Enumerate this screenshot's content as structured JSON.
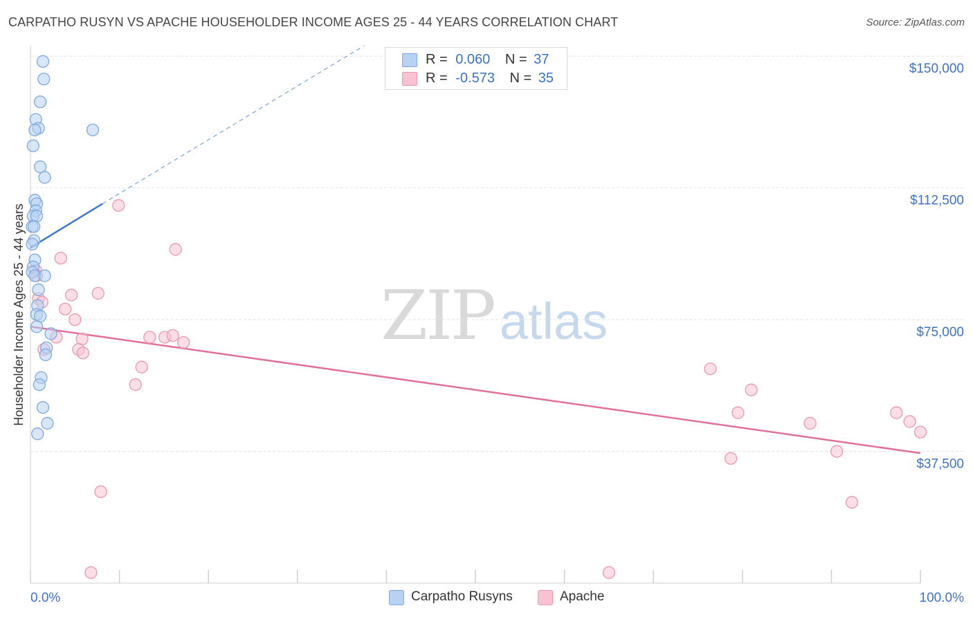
{
  "header": {
    "title": "CARPATHO RUSYN VS APACHE HOUSEHOLDER INCOME AGES 25 - 44 YEARS CORRELATION CHART",
    "source": "Source: ZipAtlas.com"
  },
  "watermark": {
    "zip": "ZIP",
    "atlas": "atlas"
  },
  "legend": {
    "rows": [
      {
        "r_label": "R =",
        "r_value": "0.060",
        "n_label": "N =",
        "n_value": "37"
      },
      {
        "r_label": "R =",
        "r_value": "-0.573",
        "n_label": "N =",
        "n_value": "35"
      }
    ]
  },
  "bottom_legend": {
    "series1": "Carpatho Rusyns",
    "series2": "Apache"
  },
  "colors": {
    "blue_fill": "#b7d2f3",
    "blue_stroke": "#7fa8e0",
    "blue_line": "#3a78c8",
    "pink_fill": "#f8c2d2",
    "pink_stroke": "#ec97b1",
    "pink_line": "#e2709a",
    "axis_label": "#3d72c4",
    "grid": "#e3e3e3"
  },
  "chart_data": {
    "type": "scatter",
    "title": "CARPATHO RUSYN VS APACHE HOUSEHOLDER INCOME AGES 25 - 44 YEARS CORRELATION CHART",
    "xlabel": "",
    "ylabel": "Householder Income Ages 25 - 44 years",
    "xlim": [
      0,
      100
    ],
    "ylim": [
      0,
      153000
    ],
    "x_tick_labels": [
      "0.0%",
      "100.0%"
    ],
    "y_ticks": [
      37500,
      75000,
      112500,
      150000
    ],
    "y_tick_labels": [
      "$37,500",
      "$75,000",
      "$112,500",
      "$150,000"
    ],
    "grid": true,
    "series": [
      {
        "name": "Carpatho Rusyns",
        "R": 0.06,
        "N": 37,
        "points": [
          [
            1.4,
            148500
          ],
          [
            1.5,
            143500
          ],
          [
            1.1,
            137000
          ],
          [
            0.6,
            132000
          ],
          [
            0.9,
            129500
          ],
          [
            0.5,
            129000
          ],
          [
            7.0,
            129000
          ],
          [
            0.3,
            124500
          ],
          [
            1.1,
            118500
          ],
          [
            1.6,
            115500
          ],
          [
            0.5,
            109000
          ],
          [
            0.7,
            108000
          ],
          [
            0.6,
            106000
          ],
          [
            0.3,
            104500
          ],
          [
            0.7,
            104500
          ],
          [
            0.2,
            101500
          ],
          [
            0.4,
            101500
          ],
          [
            0.4,
            97500
          ],
          [
            0.2,
            96500
          ],
          [
            0.5,
            92000
          ],
          [
            0.3,
            90000
          ],
          [
            0.2,
            88500
          ],
          [
            0.5,
            87500
          ],
          [
            1.6,
            87500
          ],
          [
            0.9,
            83500
          ],
          [
            0.8,
            79000
          ],
          [
            0.7,
            76500
          ],
          [
            1.1,
            76000
          ],
          [
            0.7,
            73000
          ],
          [
            2.3,
            71000
          ],
          [
            1.8,
            67000
          ],
          [
            1.7,
            65000
          ],
          [
            1.2,
            58500
          ],
          [
            1.0,
            56500
          ],
          [
            1.4,
            50000
          ],
          [
            1.9,
            45500
          ],
          [
            0.8,
            42500
          ]
        ],
        "trend": {
          "x1": 0,
          "y1": 95500,
          "x2": 8.1,
          "y2": 108000,
          "dashed_to_x": 37.5,
          "dashed_to_y": 153000
        }
      },
      {
        "name": "Apache",
        "R": -0.573,
        "N": 35,
        "points": [
          [
            0.6,
            89000
          ],
          [
            0.7,
            87500
          ],
          [
            0.9,
            81000
          ],
          [
            1.3,
            80000
          ],
          [
            3.4,
            92500
          ],
          [
            4.6,
            82000
          ],
          [
            7.6,
            82500
          ],
          [
            3.9,
            78000
          ],
          [
            5.0,
            75000
          ],
          [
            1.5,
            66500
          ],
          [
            2.9,
            70000
          ],
          [
            5.8,
            69500
          ],
          [
            5.4,
            66500
          ],
          [
            5.9,
            65500
          ],
          [
            9.9,
            107500
          ],
          [
            16.3,
            95000
          ],
          [
            13.4,
            70000
          ],
          [
            15.1,
            70000
          ],
          [
            16.0,
            70500
          ],
          [
            17.2,
            68500
          ],
          [
            12.5,
            61500
          ],
          [
            11.8,
            56500
          ],
          [
            7.9,
            26000
          ],
          [
            6.8,
            3000
          ],
          [
            65.0,
            3000
          ],
          [
            76.4,
            61000
          ],
          [
            81.0,
            55000
          ],
          [
            79.5,
            48500
          ],
          [
            87.6,
            45500
          ],
          [
            97.3,
            48500
          ],
          [
            98.8,
            46000
          ],
          [
            100.0,
            43000
          ],
          [
            78.7,
            35500
          ],
          [
            90.6,
            37500
          ],
          [
            92.3,
            23000
          ]
        ],
        "trend": {
          "x1": 0,
          "y1": 73000,
          "x2": 100,
          "y2": 37000
        }
      }
    ]
  }
}
